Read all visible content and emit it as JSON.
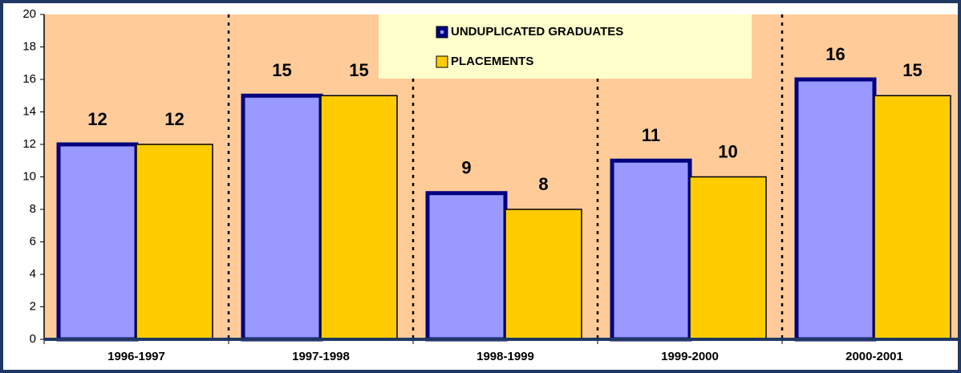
{
  "chart_data": {
    "type": "bar",
    "categories": [
      "1996-1997",
      "1997-1998",
      "1998-1999",
      "1999-2000",
      "2000-2001"
    ],
    "series": [
      {
        "name": "UNDUPLICATED GRADUATES",
        "color": "#9999ff",
        "values": [
          12,
          15,
          9,
          11,
          16
        ]
      },
      {
        "name": "PLACEMENTS",
        "color": "#ffcc00",
        "values": [
          12,
          15,
          8,
          10,
          15
        ]
      }
    ],
    "ylim": [
      0,
      20
    ],
    "yticks": [
      0,
      2,
      4,
      6,
      8,
      10,
      12,
      14,
      16,
      18,
      20
    ],
    "legend_position": "upper center",
    "background": "#ffcc99"
  }
}
